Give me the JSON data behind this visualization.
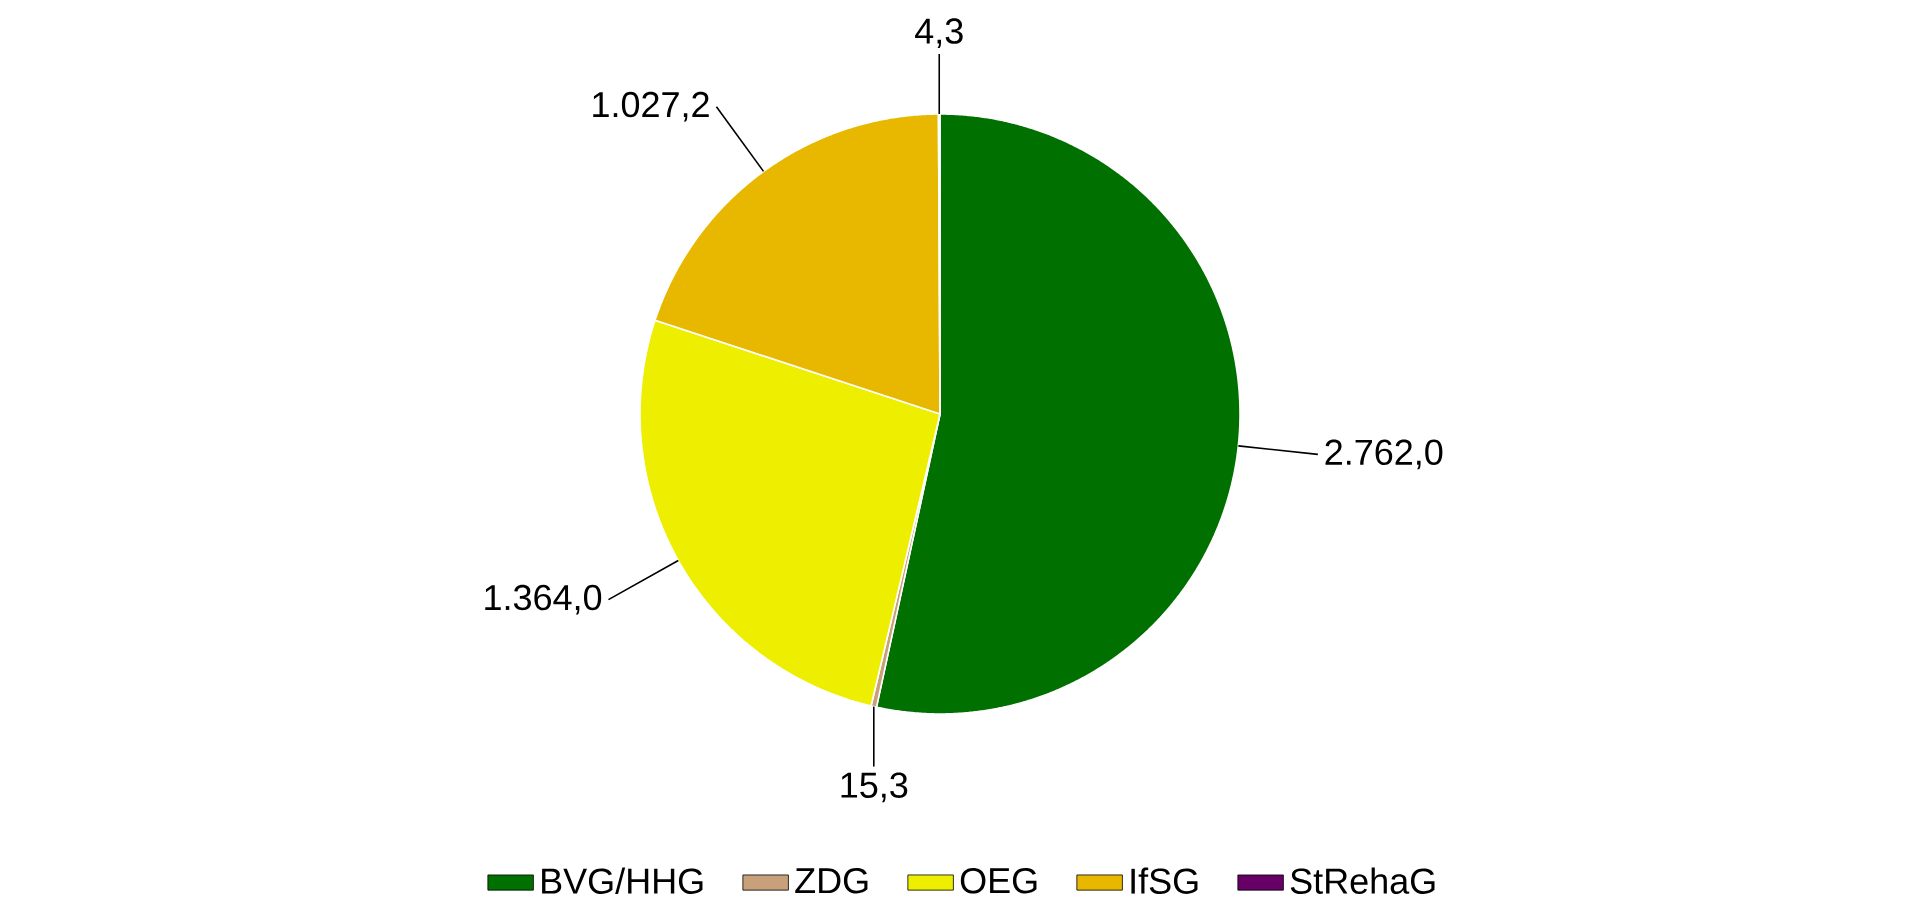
{
  "chart_data": {
    "type": "pie",
    "categories": [
      "BVG/HHG",
      "ZDG",
      "OEG",
      "IfSG",
      "StRehaG"
    ],
    "values": [
      2762.0,
      15.3,
      1364.0,
      1027.2,
      4.3
    ],
    "value_labels": [
      "2.762,0",
      "15,3",
      "1.364,0",
      "1.027,2",
      "4,3"
    ],
    "colors": [
      "#007000",
      "#c8a07a",
      "#eeee00",
      "#e8b800",
      "#660066"
    ],
    "legend": "bottom"
  }
}
